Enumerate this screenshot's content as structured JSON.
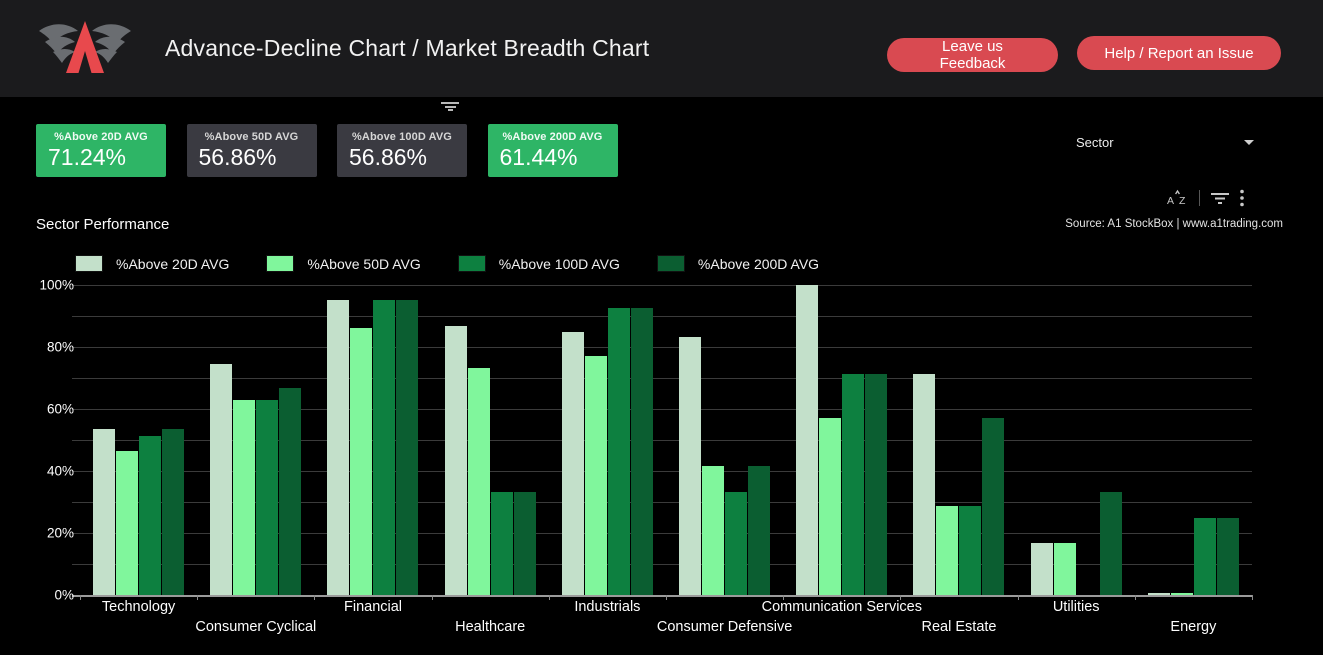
{
  "header": {
    "title": "Advance-Decline Chart / Market Breadth Chart",
    "logo": "a1-trading-winged-a-logo",
    "buttons": [
      {
        "label": "Leave us Feedback"
      },
      {
        "label": "Help / Report an Issue"
      }
    ]
  },
  "filter_control": {
    "label": "Sector"
  },
  "stat_cards": [
    {
      "label": "%Above 20D AVG",
      "value": "71.24%",
      "variant": "green"
    },
    {
      "label": "%Above 50D AVG",
      "value": "56.86%",
      "variant": "gray"
    },
    {
      "label": "%Above 100D AVG",
      "value": "56.86%",
      "variant": "gray"
    },
    {
      "label": "%Above 200D AVG",
      "value": "61.44%",
      "variant": "green"
    }
  ],
  "chart_header": {
    "title": "Sector Performance",
    "source": "Source: A1 StockBox | www.a1trading.com"
  },
  "icons": {
    "sort_az": "A↕Z sort glyph",
    "filter": "three decreasing horizontal lines",
    "more_vertical": "⋮",
    "dropdown_caret": "▾",
    "filter_handle": "three decreasing horizontal lines"
  },
  "colors": {
    "background": "#000000",
    "header_background": "#1b1b1d",
    "button_red": "#d94a51",
    "logo_red": "#e8494d",
    "wing_gray": "#6a6d71",
    "accent_green": "#2eb566",
    "card_gray": "#3a3a41",
    "gridline": "#3b3b3b"
  },
  "chart_data": {
    "type": "bar",
    "grouped": true,
    "title": "Sector Performance",
    "categories": [
      "Technology",
      "Consumer Cyclical",
      "Financial",
      "Healthcare",
      "Industrials",
      "Consumer Defensive",
      "Communication Services",
      "Real Estate",
      "Utilities",
      "Energy"
    ],
    "series": [
      {
        "name": "%Above 20D AVG",
        "color": "#c3e0ca",
        "values": [
          53.5,
          74.4,
          95.2,
          86.7,
          84.8,
          83.3,
          100.0,
          71.4,
          16.7,
          0.5
        ]
      },
      {
        "name": "%Above 50D AVG",
        "color": "#80f69c",
        "values": [
          46.5,
          63.0,
          86.0,
          73.3,
          77.1,
          41.7,
          57.1,
          28.6,
          16.7,
          0.5
        ]
      },
      {
        "name": "%Above 100D AVG",
        "color": "#0d8040",
        "values": [
          51.2,
          63.0,
          95.2,
          33.3,
          92.6,
          33.3,
          71.4,
          28.6,
          0.0,
          25.0
        ]
      },
      {
        "name": "%Above 200D AVG",
        "color": "#0b5e31",
        "values": [
          53.5,
          66.7,
          95.2,
          33.3,
          92.6,
          41.7,
          71.4,
          57.1,
          33.3,
          25.0
        ]
      }
    ],
    "ylabel": "",
    "xlabel": "",
    "ylim": [
      0,
      100
    ],
    "ytick_labels": [
      "0%",
      "20%",
      "40%",
      "60%",
      "80%",
      "100%"
    ],
    "grid_step_percent": 10,
    "grid": true,
    "legend_position": "top",
    "x_labels_staggered": true
  }
}
